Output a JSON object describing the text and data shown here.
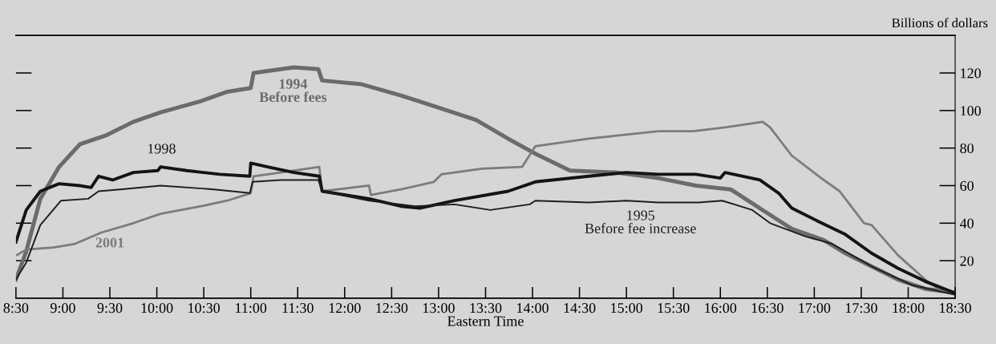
{
  "chart_data": {
    "type": "line",
    "xlabel": "Eastern Time",
    "ylabel": "Billions of dollars",
    "xlim": [
      8.5,
      18.5
    ],
    "ylim": [
      0,
      140
    ],
    "xticks": [
      {
        "value": 8.5,
        "label": "8:30"
      },
      {
        "value": 9,
        "label": "9:00"
      },
      {
        "value": 9.5,
        "label": "9:30"
      },
      {
        "value": 10,
        "label": "10:00"
      },
      {
        "value": 10.5,
        "label": "10:30"
      },
      {
        "value": 11,
        "label": "11:00"
      },
      {
        "value": 11.5,
        "label": "11:30"
      },
      {
        "value": 12,
        "label": "12:00"
      },
      {
        "value": 12.5,
        "label": "12:30"
      },
      {
        "value": 13,
        "label": "13:00"
      },
      {
        "value": 13.5,
        "label": "13:30"
      },
      {
        "value": 14,
        "label": "14:00"
      },
      {
        "value": 14.5,
        "label": "14:30"
      },
      {
        "value": 15,
        "label": "15:00"
      },
      {
        "value": 15.5,
        "label": "15:30"
      },
      {
        "value": 16,
        "label": "16:00"
      },
      {
        "value": 16.5,
        "label": "16:30"
      },
      {
        "value": 17,
        "label": "17:00"
      },
      {
        "value": 17.5,
        "label": "17:30"
      },
      {
        "value": 18,
        "label": "18:00"
      },
      {
        "value": 18.5,
        "label": "18:30"
      }
    ],
    "yticks": [
      20,
      40,
      60,
      80,
      100,
      120
    ],
    "grid": false,
    "legend": false,
    "marker": "none",
    "line_style": "solid",
    "series": [
      {
        "name": "1994\nBefore fees",
        "color": "#6b6b6b",
        "x": [
          8.5,
          8.61,
          8.76,
          8.96,
          9.18,
          9.47,
          9.75,
          10.04,
          10.47,
          10.75,
          11.0,
          11.03,
          11.46,
          11.72,
          11.76,
          12.18,
          12.6,
          13.03,
          13.4,
          13.74,
          14.03,
          14.4,
          14.88,
          15.34,
          15.74,
          16.11,
          16.48,
          16.76,
          17.1,
          17.33,
          17.61,
          17.89,
          18.18,
          18.49
        ],
        "values": [
          10,
          25,
          53,
          70,
          82,
          87,
          94,
          99,
          105,
          110,
          112,
          120,
          123,
          122,
          116,
          114,
          108,
          101,
          95,
          85,
          77,
          68,
          67,
          64,
          60,
          58,
          46,
          37,
          31,
          24,
          17,
          10,
          5,
          3
        ]
      },
      {
        "name": "2001",
        "color": "#7c7c7c",
        "x": [
          8.51,
          8.61,
          8.9,
          9.13,
          9.41,
          9.75,
          10.04,
          10.47,
          10.75,
          11.0,
          11.03,
          11.32,
          11.73,
          11.76,
          12.26,
          12.28,
          12.6,
          12.95,
          13.03,
          13.46,
          13.89,
          14.03,
          14.6,
          15.34,
          15.71,
          16.05,
          16.45,
          16.53,
          16.76,
          17.1,
          17.27,
          17.53,
          17.61,
          17.89,
          18.18,
          18.35,
          18.49
        ],
        "values": [
          23,
          26,
          27,
          29,
          35,
          40,
          45,
          49,
          52,
          56,
          65,
          67,
          70,
          57,
          60,
          55,
          58,
          62,
          66,
          69,
          70,
          81,
          85,
          89,
          89,
          91,
          94,
          91,
          76,
          63,
          57,
          40,
          39,
          23,
          10,
          4,
          3
        ]
      },
      {
        "name": "1998",
        "color": "#141414",
        "x": [
          8.5,
          8.61,
          8.76,
          8.96,
          9.18,
          9.3,
          9.38,
          9.53,
          9.75,
          10.01,
          10.04,
          10.32,
          10.67,
          10.99,
          11.0,
          11.18,
          11.46,
          11.73,
          11.76,
          12.26,
          12.6,
          12.8,
          13.17,
          13.74,
          14.03,
          14.6,
          15.0,
          15.34,
          15.74,
          16.0,
          16.05,
          16.42,
          16.62,
          16.76,
          17.04,
          17.33,
          17.61,
          17.89,
          18.18,
          18.49
        ],
        "values": [
          30,
          47,
          57,
          61,
          60,
          59,
          65,
          63,
          67,
          68,
          70,
          68,
          66,
          65,
          72,
          70,
          67,
          65,
          57,
          53,
          49,
          48,
          52,
          57,
          62,
          65,
          67,
          66,
          66,
          64,
          67,
          63,
          56,
          48,
          41,
          34,
          24,
          16,
          9,
          3
        ]
      },
      {
        "name": "1995\nBefore fee increase",
        "color": "#1e1e1e",
        "x": [
          8.5,
          8.61,
          8.76,
          8.98,
          9.27,
          9.38,
          9.61,
          10.04,
          10.61,
          10.99,
          11.02,
          11.32,
          11.72,
          11.76,
          12.26,
          12.75,
          13.17,
          13.55,
          13.97,
          14.03,
          14.6,
          15.0,
          15.34,
          15.77,
          16.02,
          16.34,
          16.53,
          16.9,
          17.19,
          17.61,
          18.04,
          18.49
        ],
        "values": [
          10,
          19,
          39,
          52,
          53,
          57,
          58,
          60,
          58,
          56,
          62,
          63,
          63,
          57,
          52,
          49,
          50,
          47,
          50,
          52,
          51,
          52,
          51,
          51,
          52,
          47,
          40,
          33,
          29,
          17,
          7,
          2
        ]
      }
    ]
  }
}
